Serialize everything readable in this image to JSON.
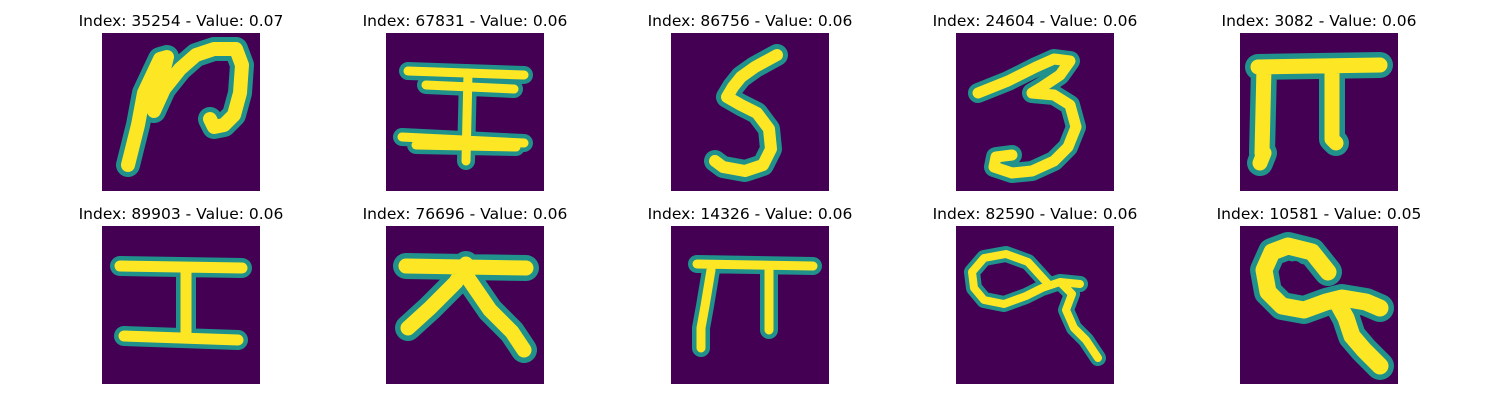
{
  "colors": {
    "background": "#440154",
    "stroke_outer": "#21918c",
    "stroke_inner": "#fde725"
  },
  "images": [
    {
      "title": "Index: 35254 - Value: 0.07",
      "glyph": "glyph-1"
    },
    {
      "title": "Index: 67831 - Value: 0.06",
      "glyph": "glyph-2"
    },
    {
      "title": "Index: 86756 - Value: 0.06",
      "glyph": "glyph-3"
    },
    {
      "title": "Index: 24604 - Value: 0.06",
      "glyph": "glyph-4"
    },
    {
      "title": "Index: 3082 - Value: 0.06",
      "glyph": "glyph-5"
    },
    {
      "title": "Index: 89903 - Value: 0.06",
      "glyph": "glyph-6"
    },
    {
      "title": "Index: 76696 - Value: 0.06",
      "glyph": "glyph-7"
    },
    {
      "title": "Index: 14326 - Value: 0.06",
      "glyph": "glyph-8"
    },
    {
      "title": "Index: 82590 - Value: 0.06",
      "glyph": "glyph-9"
    },
    {
      "title": "Index: 10581 - Value: 0.05",
      "glyph": "glyph-10"
    }
  ]
}
